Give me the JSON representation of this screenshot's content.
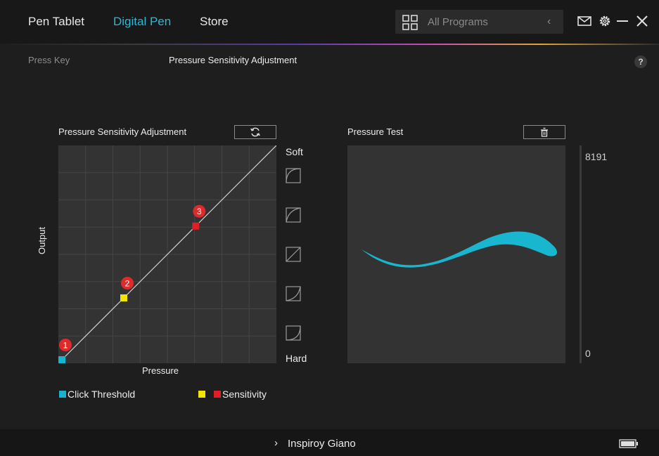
{
  "tabs": [
    {
      "label": "Pen Tablet"
    },
    {
      "label": "Digital Pen"
    },
    {
      "label": "Store"
    }
  ],
  "programs": {
    "label": "All Programs"
  },
  "subtabs": {
    "press_key": "Press Key",
    "pressure": "Pressure Sensitivity Adjustment"
  },
  "help": "?",
  "curve_panel": {
    "title": "Pressure Sensitivity Adjustment",
    "xlabel": "Pressure",
    "ylabel": "Output",
    "soft": "Soft",
    "hard": "Hard"
  },
  "test_panel": {
    "title": "Pressure Test",
    "max": "8191",
    "min": "0"
  },
  "legend": {
    "threshold": "Click Threshold",
    "sensitivity": "Sensitivity"
  },
  "footer": {
    "device": "Inspiroy Giano"
  },
  "colors": {
    "accent": "#2bb8d6",
    "threshold": "#16b4d0",
    "point2": "#f2e600",
    "point3": "#e01e26",
    "stroke": "#18b6cf"
  },
  "chart_data": {
    "type": "line",
    "title": "Pressure Sensitivity Adjustment",
    "xlabel": "Pressure",
    "ylabel": "Output",
    "xlim": [
      0,
      1
    ],
    "ylim": [
      0,
      1
    ],
    "series": [
      {
        "values": [
          [
            0,
            0
          ],
          [
            1,
            1
          ]
        ]
      }
    ],
    "points": [
      {
        "label": "1",
        "x": 0.0,
        "y": 0.0
      },
      {
        "label": "2",
        "x": 0.3,
        "y": 0.3
      },
      {
        "label": "3",
        "x": 0.63,
        "y": 0.63
      }
    ],
    "grid": true
  }
}
